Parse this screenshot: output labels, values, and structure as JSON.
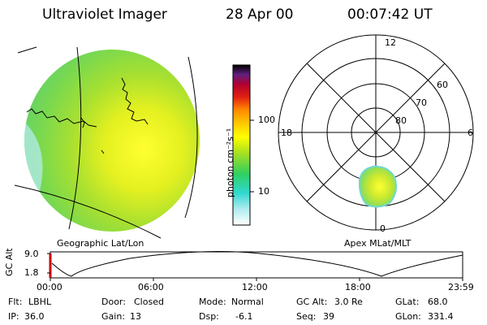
{
  "header": {
    "instrument": "Ultraviolet Imager",
    "date": "28 Apr 00",
    "time": "00:07:42 UT"
  },
  "colorbar": {
    "unit_label": "photon cm⁻²s⁻¹",
    "ticks": [
      "100",
      "10"
    ]
  },
  "left_panel": {
    "caption": "Geographic Lat/Lon"
  },
  "polar_panel": {
    "caption": "Apex MLat/MLT",
    "mlt_labels": [
      "12",
      "18",
      "6",
      "0"
    ],
    "lat_labels": [
      "60",
      "70",
      "80"
    ]
  },
  "altitude_plot": {
    "ylabel": "GC Alt",
    "y_ticks": [
      "9.0",
      "1.8"
    ],
    "x_ticks": [
      "00:00",
      "06:00",
      "12:00",
      "18:00",
      "23:59"
    ]
  },
  "status": {
    "row1": [
      {
        "label": "Flt:",
        "value": "LBHL"
      },
      {
        "label": "Door:",
        "value": "Closed"
      },
      {
        "label": "Mode:",
        "value": "Normal"
      },
      {
        "label": "GC Alt:",
        "value": "3.0 Re"
      },
      {
        "label": "GLat:",
        "value": "68.0"
      }
    ],
    "row2": [
      {
        "label": "IP:",
        "value": "36.0"
      },
      {
        "label": "Gain:",
        "value": "13"
      },
      {
        "label": "Dsp:",
        "value": "-6.1"
      },
      {
        "label": "Seq:",
        "value": "39"
      },
      {
        "label": "GLon:",
        "value": "331.4"
      }
    ]
  }
}
